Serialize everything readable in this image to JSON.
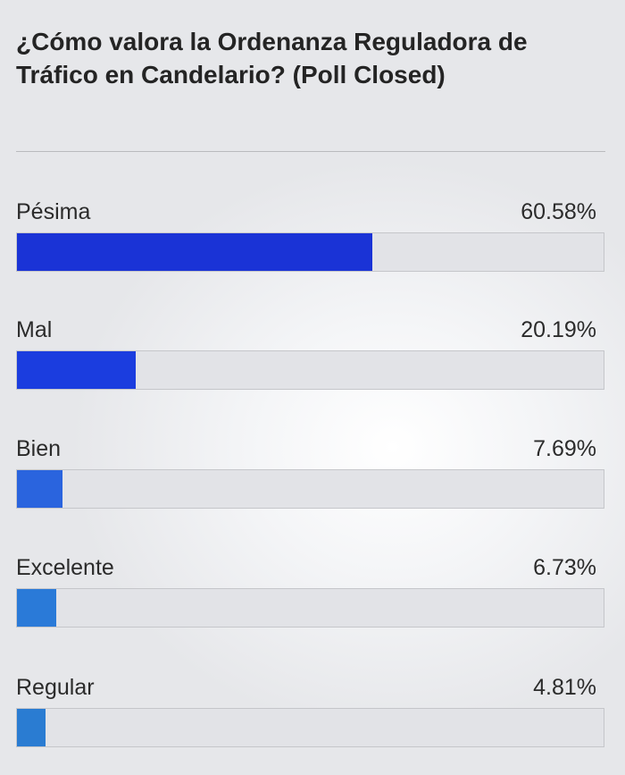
{
  "poll": {
    "title": "¿Cómo valora la Ordenanza Reguladora de Tráfico en Candelario? (Poll Closed)",
    "options": [
      {
        "label": "Pésima",
        "percent_text": "60.58%",
        "percent": 60.58,
        "color": "#1a33d6"
      },
      {
        "label": "Mal",
        "percent_text": "20.19%",
        "percent": 20.19,
        "color": "#1b3ddf"
      },
      {
        "label": "Bien",
        "percent_text": "7.69%",
        "percent": 7.69,
        "color": "#2a64de"
      },
      {
        "label": "Excelente",
        "percent_text": "6.73%",
        "percent": 6.73,
        "color": "#2a7ad8"
      },
      {
        "label": "Regular",
        "percent_text": "4.81%",
        "percent": 4.81,
        "color": "#2a7cd2"
      }
    ]
  }
}
